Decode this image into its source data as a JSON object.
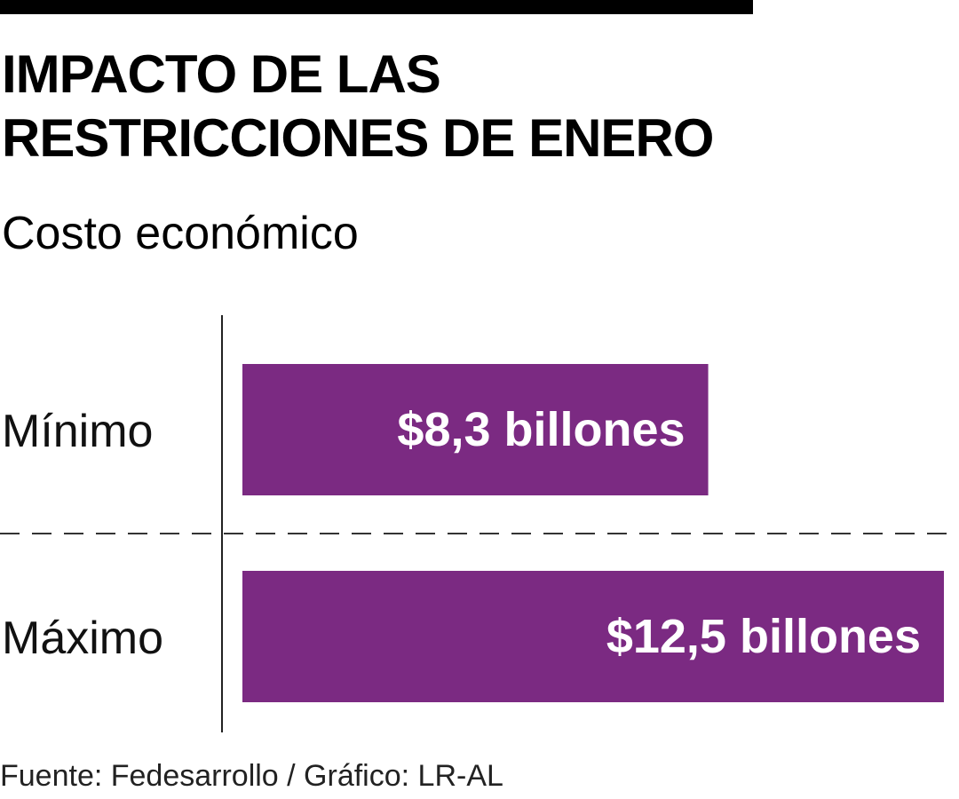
{
  "header": {
    "title_lines": [
      "IMPACTO DE LAS",
      "RESTRICCIONES DE ENERO"
    ],
    "subtitle": "Costo económico"
  },
  "footer": {
    "source": "Fuente: Fedesarrollo / Gráfico: LR-AL"
  },
  "colors": {
    "bar": "#7b2a82",
    "bar_text": "#ffffff",
    "axis": "#222222",
    "divider": "#333333",
    "top_rule": "#000000"
  },
  "chart_data": {
    "type": "bar",
    "orientation": "horizontal",
    "title": "IMPACTO DE LAS RESTRICCIONES DE ENERO",
    "subtitle": "Costo económico",
    "categories": [
      "Mínimo",
      "Máximo"
    ],
    "values": [
      8.3,
      12.5
    ],
    "data_labels": [
      "$8,3 billones",
      "$12,5 billones"
    ],
    "unit": "billones de pesos",
    "xlim": [
      0,
      12.5
    ],
    "grid": false,
    "legend": "none"
  }
}
